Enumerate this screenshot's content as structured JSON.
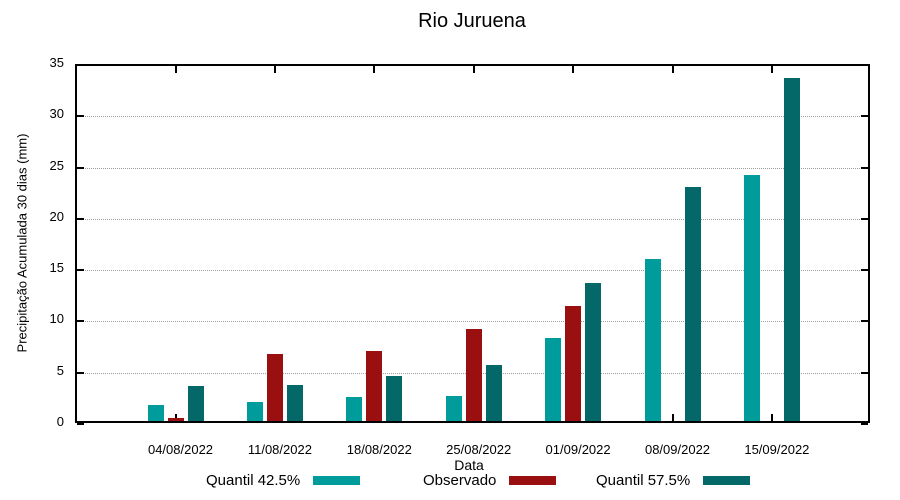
{
  "chart_data": {
    "type": "bar",
    "title": "Rio Juruena",
    "xlabel": "Data",
    "ylabel": "Precipitação Acumulada 30 dias (mm)",
    "ylim": [
      0,
      35
    ],
    "yticks": [
      0,
      5,
      10,
      15,
      20,
      25,
      30,
      35
    ],
    "grid": {
      "horizontal": true,
      "style": "dotted"
    },
    "legend_position": "bottom",
    "categories": [
      "04/08/2022",
      "11/08/2022",
      "18/08/2022",
      "25/08/2022",
      "01/09/2022",
      "08/09/2022",
      "15/09/2022"
    ],
    "series": [
      {
        "name": "Quantil 42.5%",
        "color": "#009C9C",
        "values": [
          1.55,
          1.85,
          2.3,
          2.4,
          8.1,
          15.8,
          24.0
        ]
      },
      {
        "name": "Observado",
        "color": "#9A1010",
        "values": [
          0.25,
          6.55,
          6.85,
          9.0,
          11.2,
          null,
          null
        ]
      },
      {
        "name": "Quantil 57.5%",
        "color": "#056868",
        "values": [
          3.45,
          3.5,
          4.4,
          5.5,
          13.5,
          22.8,
          33.4
        ]
      }
    ],
    "colors": {
      "background": "#ffffff",
      "text": "#000000",
      "grid": "#9e9e9e",
      "axis": "#000000"
    }
  }
}
